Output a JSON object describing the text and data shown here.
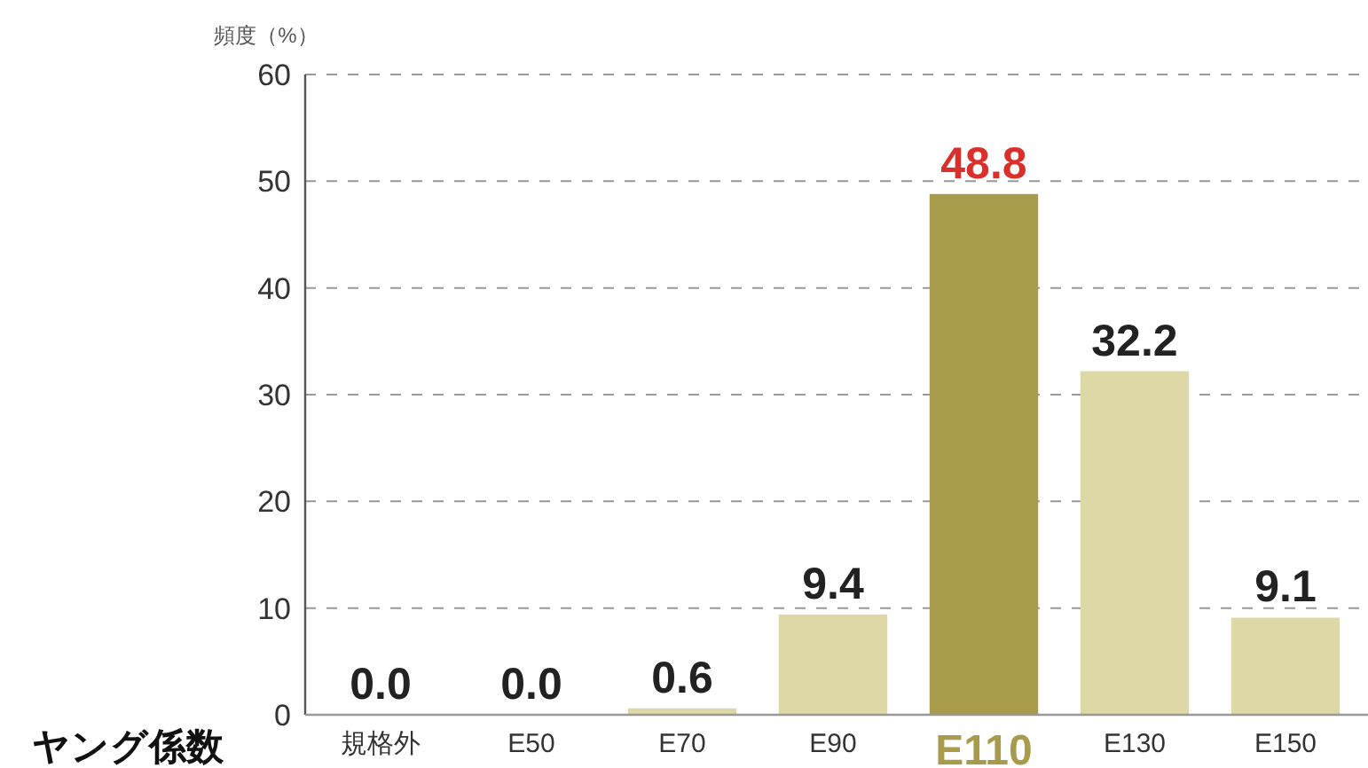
{
  "chart_data": {
    "type": "bar",
    "ylabel": "頻度（%）",
    "xlabel": "ヤング係数",
    "categories": [
      "規格外",
      "E50",
      "E70",
      "E90",
      "E110",
      "E130",
      "E150"
    ],
    "values": [
      0.0,
      0.0,
      0.6,
      9.4,
      48.8,
      32.2,
      9.1
    ],
    "value_labels": [
      "0.0",
      "0.0",
      "0.6",
      "9.4",
      "48.8",
      "32.2",
      "9.1"
    ],
    "colors": [
      "#ddd8a6",
      "#ddd8a6",
      "#ddd8a6",
      "#ddd8a6",
      "#a99b4c",
      "#ddd8a6",
      "#ddd8a6"
    ],
    "ylim": [
      0,
      60
    ],
    "yticks": [
      0,
      10,
      20,
      30,
      40,
      50,
      60
    ],
    "grid": "y"
  }
}
